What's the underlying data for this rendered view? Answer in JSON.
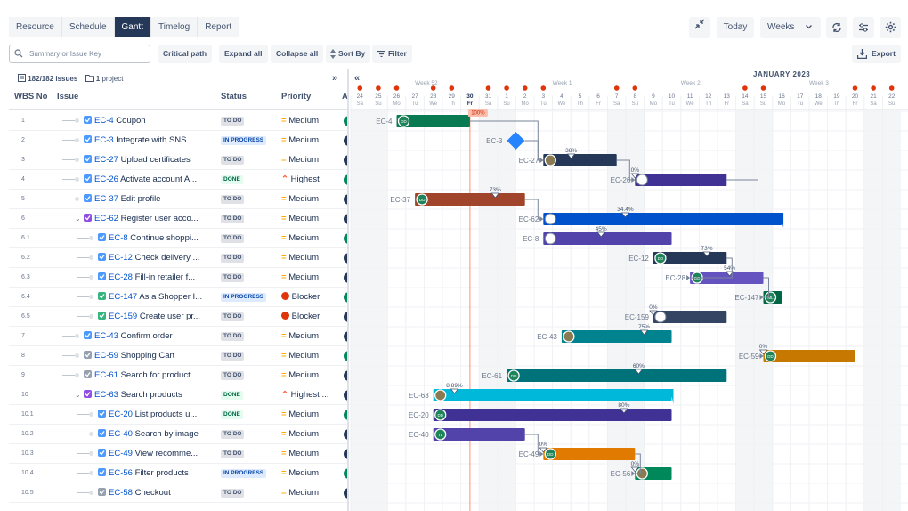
{
  "tabs": [
    {
      "label": "Resource"
    },
    {
      "label": "Schedule"
    },
    {
      "label": "Gantt"
    },
    {
      "label": "Timelog"
    },
    {
      "label": "Report"
    }
  ],
  "toolbar": {
    "today": "Today",
    "scale": "Weeks",
    "export": "Export"
  },
  "actions": {
    "search_placeholder": "Summary or Issue Key",
    "critical": "Critical path",
    "expand": "Expand all",
    "collapse": "Collapse all",
    "sort": "Sort By",
    "filter": "Filter"
  },
  "meta": {
    "issues": "182/182 issues",
    "projects": "1",
    "project_label": "project"
  },
  "columns": {
    "wbs": "WBS No",
    "issue": "Issue",
    "status": "Status",
    "priority": "Priority",
    "extra": "A"
  },
  "timeline": {
    "month": "JANUARY 2023",
    "weeks": [
      "Week 52",
      "Week 1",
      "Week 2",
      "Week 3"
    ],
    "days": [
      [
        "24",
        "Sa"
      ],
      [
        "25",
        "Su"
      ],
      [
        "26",
        "Mo"
      ],
      [
        "27",
        "Tu"
      ],
      [
        "28",
        "We"
      ],
      [
        "29",
        "Th"
      ],
      [
        "30",
        "Fr"
      ],
      [
        "31",
        "Sa"
      ],
      [
        "1",
        "Su"
      ],
      [
        "2",
        "Mo"
      ],
      [
        "3",
        "Tu"
      ],
      [
        "4",
        "We"
      ],
      [
        "5",
        "Th"
      ],
      [
        "6",
        "Fr"
      ],
      [
        "7",
        "Sa"
      ],
      [
        "8",
        "Su"
      ],
      [
        "9",
        "Mo"
      ],
      [
        "10",
        "Tu"
      ],
      [
        "11",
        "We"
      ],
      [
        "12",
        "Th"
      ],
      [
        "13",
        "Fr"
      ],
      [
        "14",
        "Sa"
      ],
      [
        "15",
        "Su"
      ],
      [
        "16",
        "Mo"
      ],
      [
        "17",
        "Tu"
      ],
      [
        "18",
        "We"
      ],
      [
        "19",
        "Th"
      ],
      [
        "20",
        "Fr"
      ],
      [
        "21",
        "Sa"
      ],
      [
        "22",
        "Su"
      ]
    ]
  },
  "rows": [
    {
      "wbs": "1",
      "key": "EC-4",
      "title": "Coupon",
      "status": "TO DO",
      "priority": "Medium",
      "type": "task",
      "indent": 0
    },
    {
      "wbs": "2",
      "key": "EC-3",
      "title": "Integrate with SNS",
      "status": "IN PROGRESS",
      "priority": "Medium",
      "type": "task",
      "indent": 0
    },
    {
      "wbs": "3",
      "key": "EC-27",
      "title": "Upload certificates",
      "status": "TO DO",
      "priority": "Medium",
      "type": "task",
      "indent": 0
    },
    {
      "wbs": "4",
      "key": "EC-26",
      "title": "Activate account A...",
      "status": "DONE",
      "priority": "Highest",
      "type": "task",
      "indent": 0
    },
    {
      "wbs": "5",
      "key": "EC-37",
      "title": "Edit profile",
      "status": "TO DO",
      "priority": "Medium",
      "type": "task",
      "indent": 0
    },
    {
      "wbs": "6",
      "key": "EC-62",
      "title": "Register user acco...",
      "status": "TO DO",
      "priority": "Medium",
      "type": "epic",
      "indent": 0
    },
    {
      "wbs": "6.1",
      "key": "EC-8",
      "title": "Continue shoppi...",
      "status": "TO DO",
      "priority": "Medium",
      "type": "task",
      "indent": 1
    },
    {
      "wbs": "6.2",
      "key": "EC-12",
      "title": "Check delivery ...",
      "status": "TO DO",
      "priority": "Medium",
      "type": "task",
      "indent": 1
    },
    {
      "wbs": "6.3",
      "key": "EC-28",
      "title": "Fill-in retailer f...",
      "status": "TO DO",
      "priority": "Medium",
      "type": "task",
      "indent": 1
    },
    {
      "wbs": "6.4",
      "key": "EC-147",
      "title": "As a Shopper I...",
      "status": "IN PROGRESS",
      "priority": "Blocker",
      "type": "story",
      "indent": 1
    },
    {
      "wbs": "6.5",
      "key": "EC-159",
      "title": "Create user pr...",
      "status": "TO DO",
      "priority": "Blocker",
      "type": "story",
      "indent": 1
    },
    {
      "wbs": "7",
      "key": "EC-43",
      "title": "Confirm order",
      "status": "TO DO",
      "priority": "Medium",
      "type": "task",
      "indent": 0
    },
    {
      "wbs": "8",
      "key": "EC-59",
      "title": "Shopping Cart",
      "status": "TO DO",
      "priority": "Medium",
      "type": "grey",
      "indent": 0
    },
    {
      "wbs": "9",
      "key": "EC-61",
      "title": "Search for product",
      "status": "TO DO",
      "priority": "Medium",
      "type": "grey",
      "indent": 0
    },
    {
      "wbs": "10",
      "key": "EC-63",
      "title": "Search products",
      "status": "DONE",
      "priority": "Highest ...",
      "type": "epic",
      "indent": 0
    },
    {
      "wbs": "10.1",
      "key": "EC-20",
      "title": "List products u...",
      "status": "DONE",
      "priority": "Medium",
      "type": "task",
      "indent": 1
    },
    {
      "wbs": "10.2",
      "key": "EC-40",
      "title": "Search by image",
      "status": "TO DO",
      "priority": "Medium",
      "type": "task",
      "indent": 1
    },
    {
      "wbs": "10.3",
      "key": "EC-49",
      "title": "View recomme...",
      "status": "TO DO",
      "priority": "Medium",
      "type": "task",
      "indent": 1
    },
    {
      "wbs": "10.4",
      "key": "EC-56",
      "title": "Filter products",
      "status": "IN PROGRESS",
      "priority": "Medium",
      "type": "task",
      "indent": 1
    },
    {
      "wbs": "10.5",
      "key": "EC-58",
      "title": "Checkout",
      "status": "TO DO",
      "priority": "Medium",
      "type": "grey",
      "indent": 1
    }
  ],
  "bars": [
    {
      "key": "EC-4",
      "start": 2.5,
      "end": 6.5,
      "color": "#0a7a52",
      "pct": "",
      "avatar": "DD"
    },
    {
      "key": "EC-3",
      "milestone": true,
      "start": 9,
      "pct": "",
      "avatar": ""
    },
    {
      "key": "EC-27",
      "start": 10.5,
      "end": 14.5,
      "color": "#253858",
      "pct": "38%",
      "avatar": "img"
    },
    {
      "key": "EC-26",
      "start": 15.5,
      "end": 20.5,
      "color": "#403294",
      "pct": "0%",
      "avatar": "ring"
    },
    {
      "key": "EC-37",
      "start": 3.5,
      "end": 9.5,
      "color": "#a0442b",
      "pct": "73%",
      "avatar": "DD"
    },
    {
      "key": "EC-62",
      "start": 10.5,
      "end": 23.5,
      "color": "#0052cc",
      "pct": "34.4%",
      "avatar": "ring",
      "parent": true
    },
    {
      "key": "EC-8",
      "start": 10.5,
      "end": 17.5,
      "color": "#5243aa",
      "pct": "45%",
      "avatar": "ring"
    },
    {
      "key": "EC-12",
      "start": 16.5,
      "end": 20.5,
      "color": "#253858",
      "pct": "73%",
      "avatar": "DD"
    },
    {
      "key": "EC-28",
      "start": 18.5,
      "end": 22.5,
      "color": "#6554c0",
      "pct": "54%",
      "avatar": "DD"
    },
    {
      "key": "EC-147",
      "start": 22.5,
      "end": 23.5,
      "color": "#006644",
      "pct": "",
      "avatar": "ML"
    },
    {
      "key": "EC-159",
      "start": 16.5,
      "end": 20.5,
      "color": "#344563",
      "pct": "0%",
      "avatar": "ring"
    },
    {
      "key": "EC-43",
      "start": 11.5,
      "end": 17.5,
      "color": "#00838f",
      "pct": "75%",
      "avatar": "img"
    },
    {
      "key": "EC-59",
      "start": 22.5,
      "end": 27.5,
      "color": "#c77800",
      "pct": "0%",
      "avatar": "DD"
    },
    {
      "key": "EC-61",
      "start": 8.5,
      "end": 20.5,
      "color": "#00737a",
      "pct": "60%",
      "avatar": "DD"
    },
    {
      "key": "EC-63",
      "start": 4.5,
      "end": 17.5,
      "color": "#00b8d9",
      "pct": "8.89%",
      "avatar": "img",
      "parent": true
    },
    {
      "key": "EC-20",
      "start": 4.5,
      "end": 17.5,
      "color": "#403294",
      "pct": "80%",
      "avatar": "DD"
    },
    {
      "key": "EC-40",
      "start": 4.5,
      "end": 9.5,
      "color": "#5243aa",
      "pct": "",
      "avatar": "TL"
    },
    {
      "key": "EC-49",
      "start": 10.5,
      "end": 15.5,
      "color": "#e07a00",
      "pct": "0%",
      "avatar": "DD"
    },
    {
      "key": "EC-56",
      "start": 15.5,
      "end": 17.5,
      "color": "#00875a",
      "pct": "0%",
      "avatar": "img"
    }
  ],
  "ec4_badge": "100%"
}
